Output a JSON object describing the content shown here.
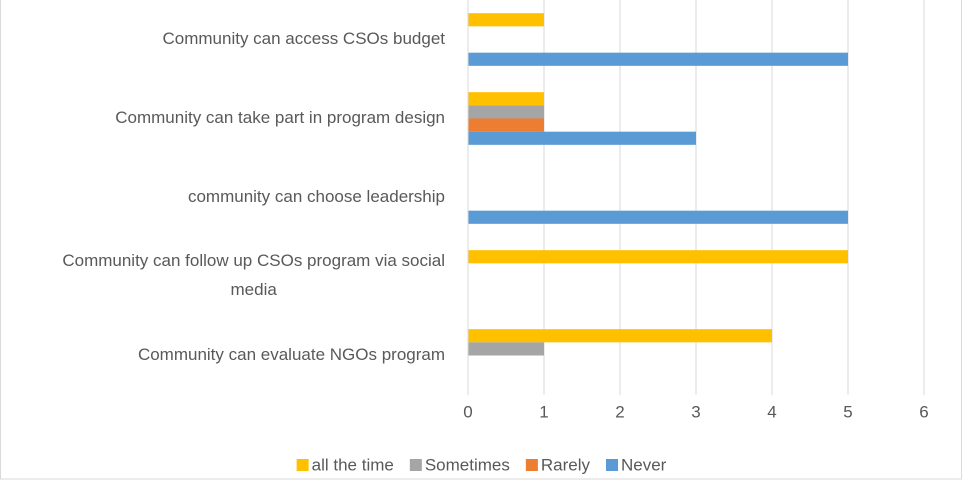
{
  "chart_data": {
    "type": "bar",
    "orientation": "horizontal",
    "categories": [
      "Community can access CSOs budget",
      "Community can take part in program design",
      "community can choose leadership",
      "Community can follow up CSOs program via social media",
      "Community can evaluate NGOs program"
    ],
    "series": [
      {
        "name": "all the time",
        "color": "#FFC000",
        "values": [
          1,
          1,
          0,
          5,
          4
        ]
      },
      {
        "name": "Sometimes",
        "color": "#A5A5A5",
        "values": [
          0,
          1,
          0,
          0,
          1
        ]
      },
      {
        "name": "Rarely",
        "color": "#ED7D31",
        "values": [
          0,
          1,
          0,
          0,
          0
        ]
      },
      {
        "name": "Never",
        "color": "#5B9BD5",
        "values": [
          5,
          3,
          5,
          0,
          0
        ]
      }
    ],
    "xlim": [
      0,
      6
    ],
    "xticks": [
      0,
      1,
      2,
      3,
      4,
      5,
      6
    ],
    "grid": true,
    "legend": "bottom"
  }
}
